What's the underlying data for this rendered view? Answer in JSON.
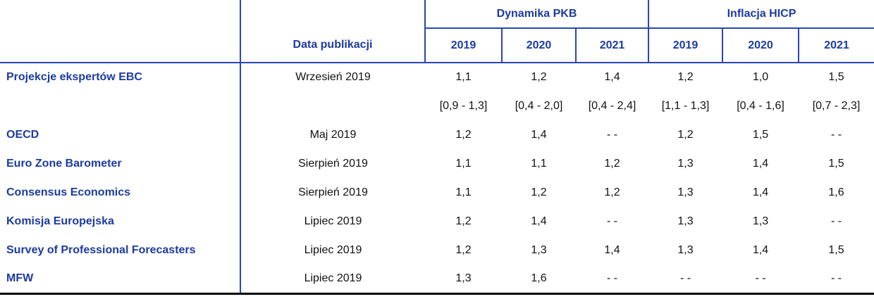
{
  "colors": {
    "accent_text_blue": "#1c3ba0",
    "border_blue": "#2946b4",
    "body_text": "#111111",
    "bottom_rule_black": "#000000",
    "background": "#ffffff"
  },
  "chart_data": {
    "type": "table",
    "group_headers": [
      "Dynamika PKB",
      "Inflacja HICP"
    ],
    "date_header": "Data publikacji",
    "year_headers": [
      "2019",
      "2020",
      "2021",
      "2019",
      "2020",
      "2021"
    ],
    "missing_value_marker": "- -",
    "rows": [
      {
        "institution": "Projekcje ekspertów EBC",
        "date": "Wrzesień 2019",
        "values": [
          "1,1",
          "1,2",
          "1,4",
          "1,2",
          "1,0",
          "1,5"
        ],
        "ranges": [
          "[0,9 - 1,3]",
          "[0,4 - 2,0]",
          "[0,4 - 2,4]",
          "[1,1 - 1,3]",
          "[0,4 - 1,6]",
          "[0,7 - 2,3]"
        ]
      },
      {
        "institution": "OECD",
        "date": "Maj 2019",
        "values": [
          "1,2",
          "1,4",
          "- -",
          "1,2",
          "1,5",
          "- -"
        ]
      },
      {
        "institution": "Euro Zone Barometer",
        "date": "Sierpień 2019",
        "values": [
          "1,1",
          "1,1",
          "1,2",
          "1,3",
          "1,4",
          "1,5"
        ]
      },
      {
        "institution": "Consensus Economics",
        "date": "Sierpień 2019",
        "values": [
          "1,1",
          "1,2",
          "1,2",
          "1,3",
          "1,4",
          "1,6"
        ]
      },
      {
        "institution": "Komisja Europejska",
        "date": "Lipiec 2019",
        "values": [
          "1,2",
          "1,4",
          "- -",
          "1,3",
          "1,3",
          "- -"
        ]
      },
      {
        "institution": "Survey of Professional Forecasters",
        "date": "Lipiec 2019",
        "values": [
          "1,2",
          "1,3",
          "1,4",
          "1,3",
          "1,4",
          "1,5"
        ]
      },
      {
        "institution": "MFW",
        "date": "Lipiec 2019",
        "values": [
          "1,3",
          "1,6",
          "- -",
          "- -",
          "- -",
          "- -"
        ]
      }
    ]
  }
}
